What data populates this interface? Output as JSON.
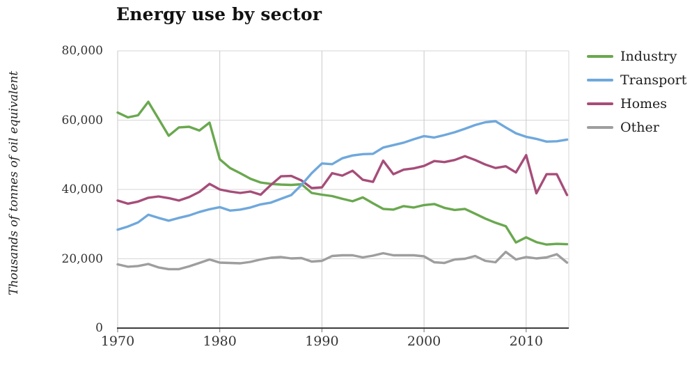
{
  "title": "Energy use by sector",
  "colors": {
    "industry": "#6aa84f",
    "transport": "#6fa8dc",
    "homes": "#a64d79",
    "other": "#9e9e9e",
    "axis_line": "#3c3c3c",
    "grid_horizontal": "#d6d6d6",
    "grid_vertical": "#c9c9c9",
    "tick_text": "#333333"
  },
  "chart_data": {
    "type": "line",
    "title": "Energy use by sector",
    "xlabel": "",
    "ylabel": "Thousands of tonnes of oil equivalent",
    "ylim": [
      0,
      80000
    ],
    "xlim": [
      1970,
      2014.3
    ],
    "grid": true,
    "legend_position": "right",
    "y_ticks": [
      {
        "value": 0,
        "label": "0"
      },
      {
        "value": 20000,
        "label": "20,000"
      },
      {
        "value": 40000,
        "label": "40,000"
      },
      {
        "value": 60000,
        "label": "60,000"
      },
      {
        "value": 80000,
        "label": "80,000"
      }
    ],
    "x_ticks": [
      {
        "value": 1970,
        "label": "1970"
      },
      {
        "value": 1980,
        "label": "1980"
      },
      {
        "value": 1990,
        "label": "1990"
      },
      {
        "value": 2000,
        "label": "2000"
      },
      {
        "value": 2010,
        "label": "2010"
      }
    ],
    "x": [
      1970,
      1971,
      1972,
      1973,
      1974,
      1975,
      1976,
      1977,
      1978,
      1979,
      1980,
      1981,
      1982,
      1983,
      1984,
      1985,
      1986,
      1987,
      1988,
      1989,
      1990,
      1991,
      1992,
      1993,
      1994,
      1995,
      1996,
      1997,
      1998,
      1999,
      2000,
      2001,
      2002,
      2003,
      2004,
      2005,
      2006,
      2007,
      2008,
      2009,
      2010,
      2011,
      2012,
      2013,
      2014
    ],
    "series": [
      {
        "name": "Industry",
        "color_key": "industry",
        "values": [
          62200,
          60800,
          61400,
          65300,
          60400,
          55500,
          57900,
          58100,
          57000,
          59300,
          48700,
          46200,
          44700,
          43100,
          42000,
          41600,
          41400,
          41300,
          41500,
          39000,
          38500,
          38100,
          37300,
          36600,
          37700,
          36000,
          34400,
          34200,
          35200,
          34800,
          35500,
          35800,
          34700,
          34100,
          34400,
          33000,
          31600,
          30400,
          29400,
          24700,
          26200,
          24800,
          24100,
          24300,
          24200
        ]
      },
      {
        "name": "Transport",
        "color_key": "transport",
        "values": [
          28400,
          29300,
          30500,
          32700,
          31800,
          31000,
          31800,
          32500,
          33500,
          34300,
          34900,
          33900,
          34200,
          34800,
          35700,
          36200,
          37300,
          38400,
          41300,
          44700,
          47500,
          47300,
          49000,
          49800,
          50200,
          50300,
          52100,
          52800,
          53500,
          54500,
          55400,
          55000,
          55700,
          56500,
          57500,
          58600,
          59400,
          59700,
          57900,
          56200,
          55200,
          54600,
          53800,
          53900,
          54400
        ]
      },
      {
        "name": "Homes",
        "color_key": "homes",
        "values": [
          36800,
          35900,
          36500,
          37600,
          38000,
          37500,
          36800,
          37800,
          39300,
          41600,
          40000,
          39400,
          39000,
          39400,
          38500,
          41300,
          43800,
          43900,
          42600,
          40400,
          40600,
          44700,
          44000,
          45400,
          42800,
          42200,
          48300,
          44400,
          45700,
          46100,
          46800,
          48200,
          47900,
          48500,
          49600,
          48500,
          47200,
          46200,
          46700,
          44900,
          49900,
          38900,
          44400,
          44400,
          38400
        ]
      },
      {
        "name": "Other",
        "color_key": "other",
        "values": [
          18400,
          17700,
          17900,
          18500,
          17500,
          17000,
          17000,
          17800,
          18800,
          19800,
          18900,
          18800,
          18700,
          19100,
          19800,
          20300,
          20500,
          20100,
          20200,
          19200,
          19400,
          20800,
          21000,
          21000,
          20400,
          20900,
          21600,
          21000,
          21000,
          21000,
          20700,
          19000,
          18800,
          19800,
          20000,
          20800,
          19400,
          19000,
          22000,
          19800,
          20500,
          20100,
          20400,
          21300,
          18900
        ]
      }
    ]
  }
}
